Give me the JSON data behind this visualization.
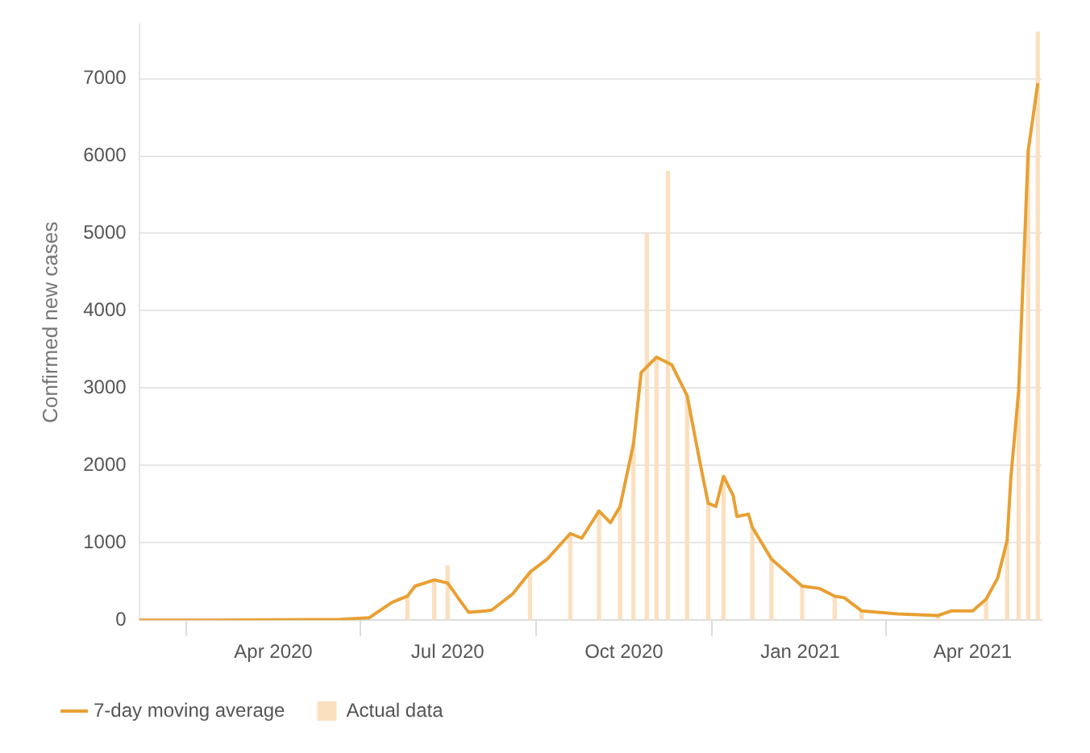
{
  "chart_data": {
    "type": "line",
    "ylabel": "Confirmed new cases",
    "xlim": [
      "2020-01-22",
      "2021-05-07"
    ],
    "xticks": [
      {
        "value": "2020-04-01",
        "label": "Apr 2020"
      },
      {
        "value": "2020-07-01",
        "label": "Jul 2020"
      },
      {
        "value": "2020-10-01",
        "label": "Oct 2020"
      },
      {
        "value": "2021-01-01",
        "label": "Jan 2021"
      },
      {
        "value": "2021-04-01",
        "label": "Apr 2021"
      }
    ],
    "ylim": [
      0,
      7700
    ],
    "yticks": [
      0,
      1000,
      2000,
      3000,
      4000,
      5000,
      6000,
      7000
    ],
    "grid": "y",
    "legend": "bottom",
    "marker": "none",
    "line_style": "solid",
    "series": [
      {
        "name": "7-day moving average",
        "color": "#e8a033",
        "x": [
          "2020-01-22",
          "2020-03-01",
          "2020-05-06",
          "2020-05-21",
          "2020-06-02",
          "2020-06-10",
          "2020-06-14",
          "2020-06-24",
          "2020-07-01",
          "2020-07-07",
          "2020-07-12",
          "2020-07-21",
          "2020-07-24",
          "2020-08-04",
          "2020-08-13",
          "2020-08-22",
          "2020-09-03",
          "2020-09-09",
          "2020-09-18",
          "2020-09-24",
          "2020-09-29",
          "2020-10-06",
          "2020-10-10",
          "2020-10-18",
          "2020-10-26",
          "2020-11-03",
          "2020-11-10",
          "2020-11-14",
          "2020-11-18",
          "2020-11-22",
          "2020-11-27",
          "2020-11-29",
          "2020-12-05",
          "2020-12-07",
          "2020-12-17",
          "2021-01-02",
          "2021-01-11",
          "2021-01-19",
          "2021-01-24",
          "2021-02-02",
          "2021-02-21",
          "2021-03-14",
          "2021-03-21",
          "2021-04-01",
          "2021-04-08",
          "2021-04-14",
          "2021-04-19",
          "2021-04-21",
          "2021-04-25",
          "2021-04-30",
          "2021-05-05"
        ],
        "values": [
          0,
          0,
          10,
          30,
          230,
          310,
          440,
          520,
          480,
          270,
          100,
          120,
          130,
          340,
          620,
          790,
          1120,
          1060,
          1410,
          1260,
          1470,
          2280,
          3200,
          3400,
          3300,
          2900,
          2000,
          1510,
          1470,
          1860,
          1610,
          1340,
          1370,
          1200,
          790,
          440,
          410,
          310,
          290,
          120,
          80,
          60,
          120,
          120,
          270,
          540,
          1030,
          1860,
          2960,
          6070,
          6940
        ]
      },
      {
        "name": "Actual data",
        "type": "bar",
        "color": "#fbe0c0",
        "x": [
          "2020-06-10",
          "2020-06-24",
          "2020-07-01",
          "2020-08-13",
          "2020-09-03",
          "2020-09-18",
          "2020-09-29",
          "2020-10-06",
          "2020-10-13",
          "2020-10-18",
          "2020-10-24",
          "2020-11-03",
          "2020-11-14",
          "2020-11-22",
          "2020-12-07",
          "2020-12-17",
          "2021-01-02",
          "2021-01-19",
          "2021-02-02",
          "2021-03-14",
          "2021-04-08",
          "2021-04-19",
          "2021-04-25",
          "2021-04-30",
          "2021-05-05"
        ],
        "values": [
          310,
          520,
          700,
          620,
          1120,
          1410,
          1470,
          2280,
          5000,
          3400,
          5800,
          2900,
          1510,
          1860,
          1200,
          790,
          440,
          310,
          120,
          60,
          270,
          1030,
          2960,
          6070,
          7600
        ]
      }
    ]
  }
}
